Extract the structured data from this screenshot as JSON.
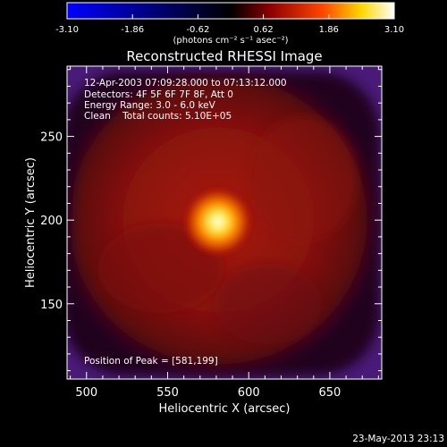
{
  "chart_data": {
    "type": "heatmap",
    "title": "Reconstructed RHESSI Image",
    "xlabel": "Heliocentric X (arcsec)",
    "ylabel": "Heliocentric Y (arcsec)",
    "xlim": [
      488,
      682
    ],
    "ylim": [
      105,
      292
    ],
    "xticks": [
      500,
      550,
      600,
      650
    ],
    "yticks": [
      150,
      200,
      250
    ],
    "peak_position": [
      581,
      199
    ],
    "colorbar": {
      "range": [
        -3.1,
        3.1
      ],
      "tick_values": [
        -3.1,
        -1.86,
        -0.62,
        0.62,
        1.86,
        3.1
      ],
      "tick_labels": [
        "-3.10",
        "-1.86",
        "-0.62",
        "0.62",
        "1.86",
        "3.10"
      ],
      "colormap": [
        "#0000ff",
        "#000000",
        "#8b0000",
        "#ff4500",
        "#ffd700",
        "#ffffff"
      ]
    },
    "annotations": [
      "12-Apr-2003 07:09:28.000 to 07:13:12.000",
      "Detectors: 4F 5F 6F 7F 8F, Att 0",
      "Energy Range: 3.0 - 6.0 keV",
      "Clean    Total counts: 5.10E+05"
    ],
    "peak_label": "Position of Peak = [581,199]"
  },
  "colorbar_units": "(photons cm⁻² s⁻¹ asec⁻²)",
  "footer_date": "23-May-2013 23:13",
  "colors": {
    "background": "#000000",
    "field": "#4a1a78",
    "halo": "#2a0a2a",
    "body": "#861010",
    "core": "#ff6a00",
    "peak": "#ffffe8"
  }
}
